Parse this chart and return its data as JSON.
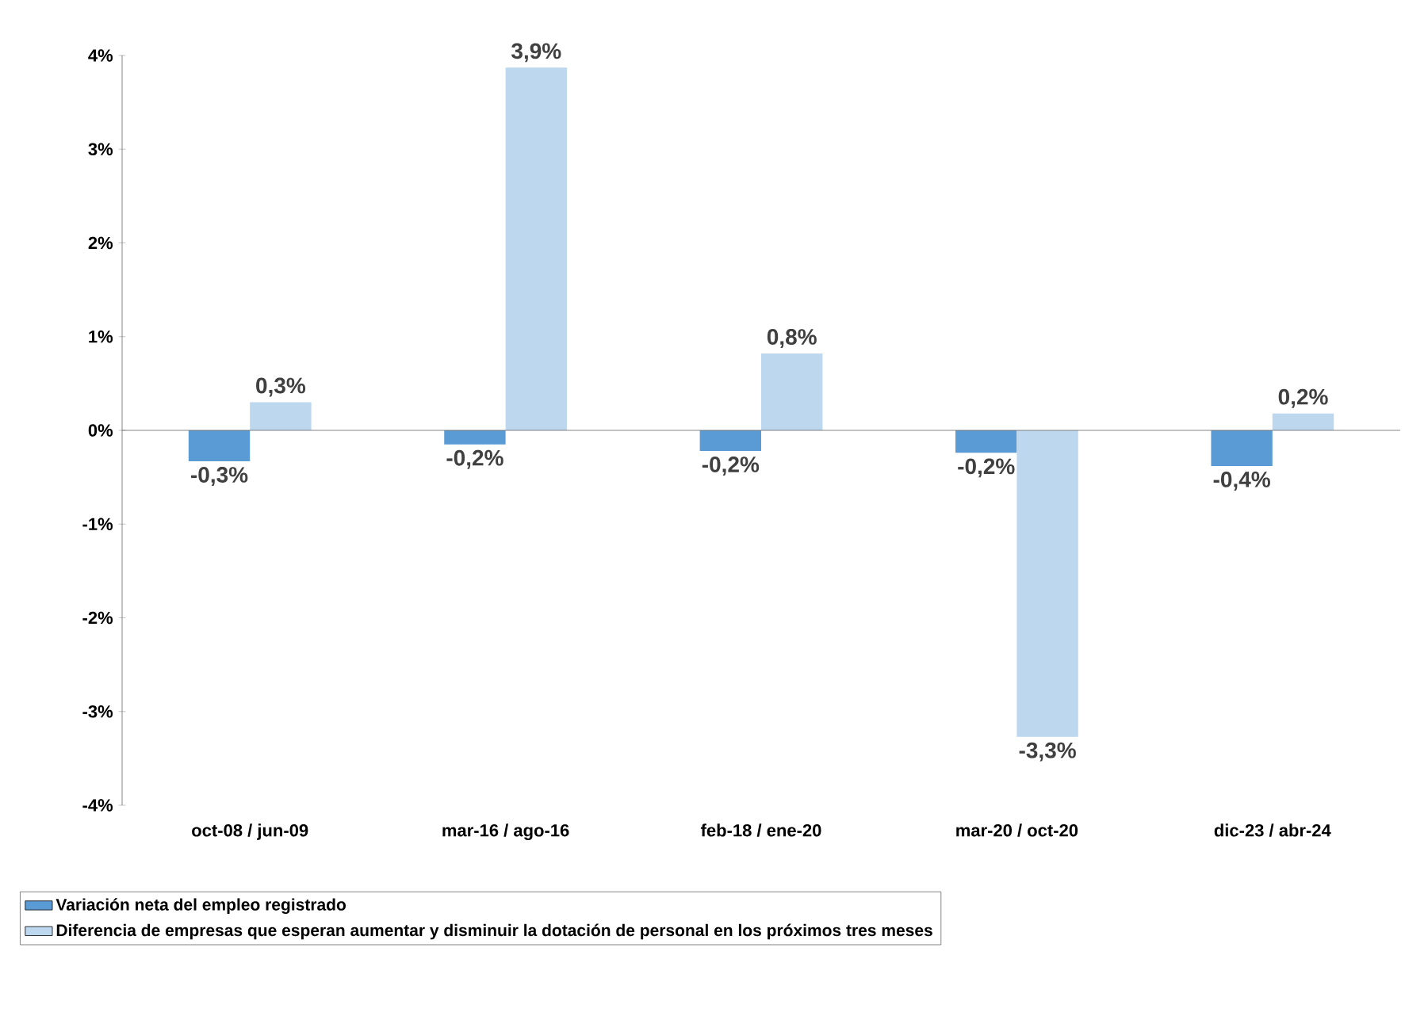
{
  "chart_data": {
    "type": "bar",
    "categories": [
      "oct-08 / jun-09",
      "mar-16 / ago-16",
      "feb-18 / ene-20",
      "mar-20 / oct-20",
      "dic-23 / abr-24"
    ],
    "series": [
      {
        "name": "Variación neta del empleo registrado",
        "color": "#5b9bd5",
        "values": [
          -0.33,
          -0.15,
          -0.22,
          -0.24,
          -0.38
        ],
        "value_labels": [
          "-0,3%",
          "-0,2%",
          "-0,2%",
          "-0,2%",
          "-0,4%"
        ]
      },
      {
        "name": "Diferencia de empresas que esperan aumentar y disminuir la dotación de personal en los próximos tres meses",
        "color": "#bdd7ee",
        "values": [
          0.3,
          3.87,
          0.82,
          -3.27,
          0.18
        ],
        "value_labels": [
          "0,3%",
          "3,9%",
          "0,8%",
          "-3,3%",
          "0,2%"
        ]
      }
    ],
    "ylim": [
      -4,
      4
    ],
    "yticks": [
      {
        "value": -4,
        "label": "-4%"
      },
      {
        "value": -3,
        "label": "-3%"
      },
      {
        "value": -2,
        "label": "-2%"
      },
      {
        "value": -1,
        "label": "-1%"
      },
      {
        "value": 0,
        "label": "0%"
      },
      {
        "value": 1,
        "label": "1%"
      },
      {
        "value": 2,
        "label": "2%"
      },
      {
        "value": 3,
        "label": "3%"
      },
      {
        "value": 4,
        "label": "4%"
      }
    ],
    "legend": "bottom"
  }
}
